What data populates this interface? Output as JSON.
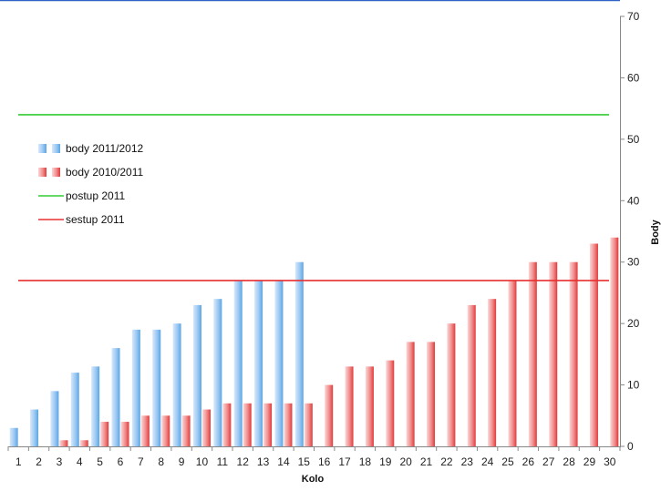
{
  "chart_data": {
    "type": "bar",
    "categories": [
      "1",
      "2",
      "3",
      "4",
      "5",
      "6",
      "7",
      "8",
      "9",
      "10",
      "11",
      "12",
      "13",
      "14",
      "15",
      "16",
      "17",
      "18",
      "19",
      "20",
      "21",
      "22",
      "23",
      "24",
      "25",
      "26",
      "27",
      "28",
      "29",
      "30"
    ],
    "series": [
      {
        "name": "body 2011/2012",
        "type": "bar",
        "color": "#8fbff0",
        "values": [
          3,
          6,
          9,
          12,
          13,
          16,
          19,
          19,
          20,
          23,
          24,
          27,
          27,
          27,
          30,
          null,
          null,
          null,
          null,
          null,
          null,
          null,
          null,
          null,
          null,
          null,
          null,
          null,
          null,
          null
        ]
      },
      {
        "name": "body 2010/2011",
        "type": "bar",
        "color": "#f07070",
        "values": [
          0,
          0,
          1,
          1,
          4,
          4,
          5,
          5,
          5,
          6,
          7,
          7,
          7,
          7,
          7,
          10,
          13,
          13,
          14,
          17,
          17,
          20,
          23,
          24,
          27,
          30,
          30,
          30,
          33,
          34
        ]
      },
      {
        "name": "postup 2011",
        "type": "line",
        "color": "#33cc33",
        "value": 54
      },
      {
        "name": "sestup 2011",
        "type": "line",
        "color": "#e83030",
        "value": 27
      }
    ],
    "xlabel": "Kolo",
    "ylabel": "Body",
    "ylim": [
      0,
      70
    ],
    "yticks": [
      0,
      10,
      20,
      30,
      40,
      50,
      60,
      70
    ],
    "grid": false,
    "legend_position": "left"
  }
}
